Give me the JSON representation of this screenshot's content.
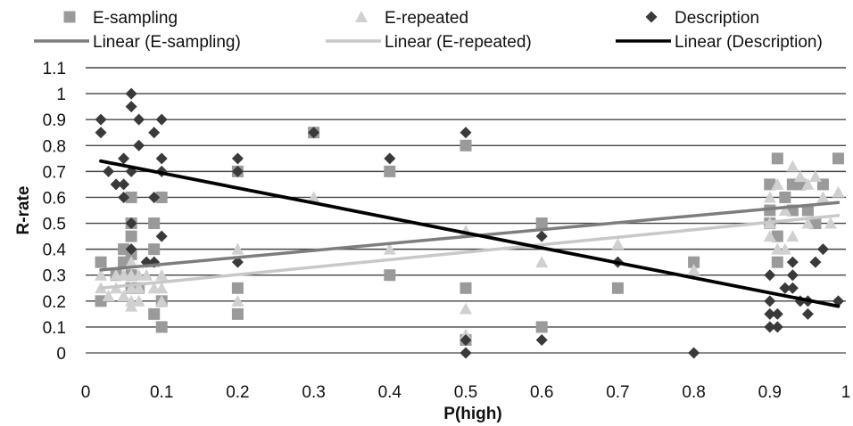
{
  "chart_data": {
    "type": "scatter",
    "xlabel": "P(high)",
    "ylabel": "R-rate",
    "xlim": [
      0,
      1
    ],
    "ylim": [
      0,
      1.1
    ],
    "x_ticks": [
      "0",
      "0.1",
      "0.2",
      "0.3",
      "0.4",
      "0.5",
      "0.6",
      "0.7",
      "0.8",
      "0.9",
      "1"
    ],
    "y_ticks": [
      "0",
      "0.1",
      "0.2",
      "0.3",
      "0.4",
      "0.5",
      "0.6",
      "0.7",
      "0.8",
      "0.9",
      "1",
      "1.1"
    ],
    "grid": "horizontal",
    "legend_position": "top",
    "series": [
      {
        "name": "E-sampling",
        "marker": "square",
        "color": "#9a9a9a",
        "points": [
          [
            0.02,
            0.35
          ],
          [
            0.02,
            0.2
          ],
          [
            0.04,
            0.3
          ],
          [
            0.05,
            0.4
          ],
          [
            0.05,
            0.35
          ],
          [
            0.06,
            0.6
          ],
          [
            0.06,
            0.5
          ],
          [
            0.06,
            0.45
          ],
          [
            0.06,
            0.38
          ],
          [
            0.06,
            0.3
          ],
          [
            0.06,
            0.25
          ],
          [
            0.07,
            0.25
          ],
          [
            0.09,
            0.5
          ],
          [
            0.09,
            0.4
          ],
          [
            0.09,
            0.15
          ],
          [
            0.1,
            0.6
          ],
          [
            0.1,
            0.2
          ],
          [
            0.1,
            0.1
          ],
          [
            0.2,
            0.7
          ],
          [
            0.2,
            0.25
          ],
          [
            0.2,
            0.15
          ],
          [
            0.3,
            0.85
          ],
          [
            0.4,
            0.7
          ],
          [
            0.4,
            0.3
          ],
          [
            0.5,
            0.8
          ],
          [
            0.5,
            0.25
          ],
          [
            0.5,
            0.05
          ],
          [
            0.6,
            0.5
          ],
          [
            0.6,
            0.1
          ],
          [
            0.7,
            0.25
          ],
          [
            0.8,
            0.35
          ],
          [
            0.9,
            0.65
          ],
          [
            0.9,
            0.55
          ],
          [
            0.9,
            0.5
          ],
          [
            0.91,
            0.75
          ],
          [
            0.91,
            0.45
          ],
          [
            0.91,
            0.35
          ],
          [
            0.92,
            0.6
          ],
          [
            0.93,
            0.65
          ],
          [
            0.93,
            0.55
          ],
          [
            0.94,
            0.65
          ],
          [
            0.95,
            0.55
          ],
          [
            0.96,
            0.5
          ],
          [
            0.97,
            0.65
          ],
          [
            0.99,
            0.75
          ]
        ]
      },
      {
        "name": "E-repeated",
        "marker": "triangle",
        "color": "#d0d0d0",
        "points": [
          [
            0.02,
            0.3
          ],
          [
            0.02,
            0.25
          ],
          [
            0.03,
            0.22
          ],
          [
            0.04,
            0.3
          ],
          [
            0.04,
            0.25
          ],
          [
            0.05,
            0.3
          ],
          [
            0.05,
            0.22
          ],
          [
            0.06,
            0.35
          ],
          [
            0.06,
            0.3
          ],
          [
            0.06,
            0.25
          ],
          [
            0.06,
            0.2
          ],
          [
            0.06,
            0.18
          ],
          [
            0.07,
            0.3
          ],
          [
            0.07,
            0.25
          ],
          [
            0.07,
            0.2
          ],
          [
            0.08,
            0.3
          ],
          [
            0.09,
            0.35
          ],
          [
            0.09,
            0.25
          ],
          [
            0.1,
            0.3
          ],
          [
            0.1,
            0.25
          ],
          [
            0.1,
            0.2
          ],
          [
            0.2,
            0.4
          ],
          [
            0.2,
            0.2
          ],
          [
            0.3,
            0.6
          ],
          [
            0.4,
            0.4
          ],
          [
            0.5,
            0.47
          ],
          [
            0.5,
            0.17
          ],
          [
            0.5,
            0.07
          ],
          [
            0.6,
            0.35
          ],
          [
            0.7,
            0.42
          ],
          [
            0.8,
            0.32
          ],
          [
            0.9,
            0.6
          ],
          [
            0.9,
            0.5
          ],
          [
            0.9,
            0.45
          ],
          [
            0.91,
            0.65
          ],
          [
            0.91,
            0.4
          ],
          [
            0.92,
            0.55
          ],
          [
            0.92,
            0.4
          ],
          [
            0.93,
            0.72
          ],
          [
            0.93,
            0.45
          ],
          [
            0.94,
            0.68
          ],
          [
            0.95,
            0.65
          ],
          [
            0.95,
            0.5
          ],
          [
            0.96,
            0.68
          ],
          [
            0.97,
            0.6
          ],
          [
            0.98,
            0.5
          ],
          [
            0.99,
            0.62
          ]
        ]
      },
      {
        "name": "Description",
        "marker": "diamond",
        "color": "#3a3a3a",
        "points": [
          [
            0.02,
            0.9
          ],
          [
            0.02,
            0.85
          ],
          [
            0.03,
            0.7
          ],
          [
            0.04,
            0.65
          ],
          [
            0.05,
            0.75
          ],
          [
            0.05,
            0.65
          ],
          [
            0.05,
            0.6
          ],
          [
            0.06,
            1.0
          ],
          [
            0.06,
            0.95
          ],
          [
            0.06,
            0.7
          ],
          [
            0.06,
            0.5
          ],
          [
            0.06,
            0.4
          ],
          [
            0.07,
            0.9
          ],
          [
            0.07,
            0.8
          ],
          [
            0.08,
            0.35
          ],
          [
            0.09,
            0.85
          ],
          [
            0.09,
            0.6
          ],
          [
            0.09,
            0.35
          ],
          [
            0.1,
            0.9
          ],
          [
            0.1,
            0.75
          ],
          [
            0.1,
            0.7
          ],
          [
            0.1,
            0.45
          ],
          [
            0.2,
            0.75
          ],
          [
            0.2,
            0.7
          ],
          [
            0.2,
            0.35
          ],
          [
            0.3,
            0.85
          ],
          [
            0.4,
            0.75
          ],
          [
            0.5,
            0.85
          ],
          [
            0.5,
            0.05
          ],
          [
            0.5,
            0.0
          ],
          [
            0.6,
            0.45
          ],
          [
            0.6,
            0.05
          ],
          [
            0.7,
            0.35
          ],
          [
            0.8,
            0.0
          ],
          [
            0.9,
            0.3
          ],
          [
            0.9,
            0.2
          ],
          [
            0.9,
            0.15
          ],
          [
            0.9,
            0.1
          ],
          [
            0.91,
            0.15
          ],
          [
            0.91,
            0.1
          ],
          [
            0.92,
            0.25
          ],
          [
            0.93,
            0.35
          ],
          [
            0.93,
            0.3
          ],
          [
            0.93,
            0.25
          ],
          [
            0.94,
            0.2
          ],
          [
            0.95,
            0.2
          ],
          [
            0.95,
            0.15
          ],
          [
            0.96,
            0.35
          ],
          [
            0.97,
            0.4
          ],
          [
            0.99,
            0.2
          ]
        ]
      }
    ],
    "trendlines": [
      {
        "name": "Linear (E-sampling)",
        "color": "#7d7d7d",
        "x": [
          0.02,
          0.99
        ],
        "y": [
          0.32,
          0.58
        ]
      },
      {
        "name": "Linear (E-repeated)",
        "color": "#c8c8c8",
        "x": [
          0.02,
          0.99
        ],
        "y": [
          0.25,
          0.53
        ]
      },
      {
        "name": "Linear (Description)",
        "color": "#000000",
        "x": [
          0.02,
          0.99
        ],
        "y": [
          0.74,
          0.18
        ]
      }
    ]
  }
}
